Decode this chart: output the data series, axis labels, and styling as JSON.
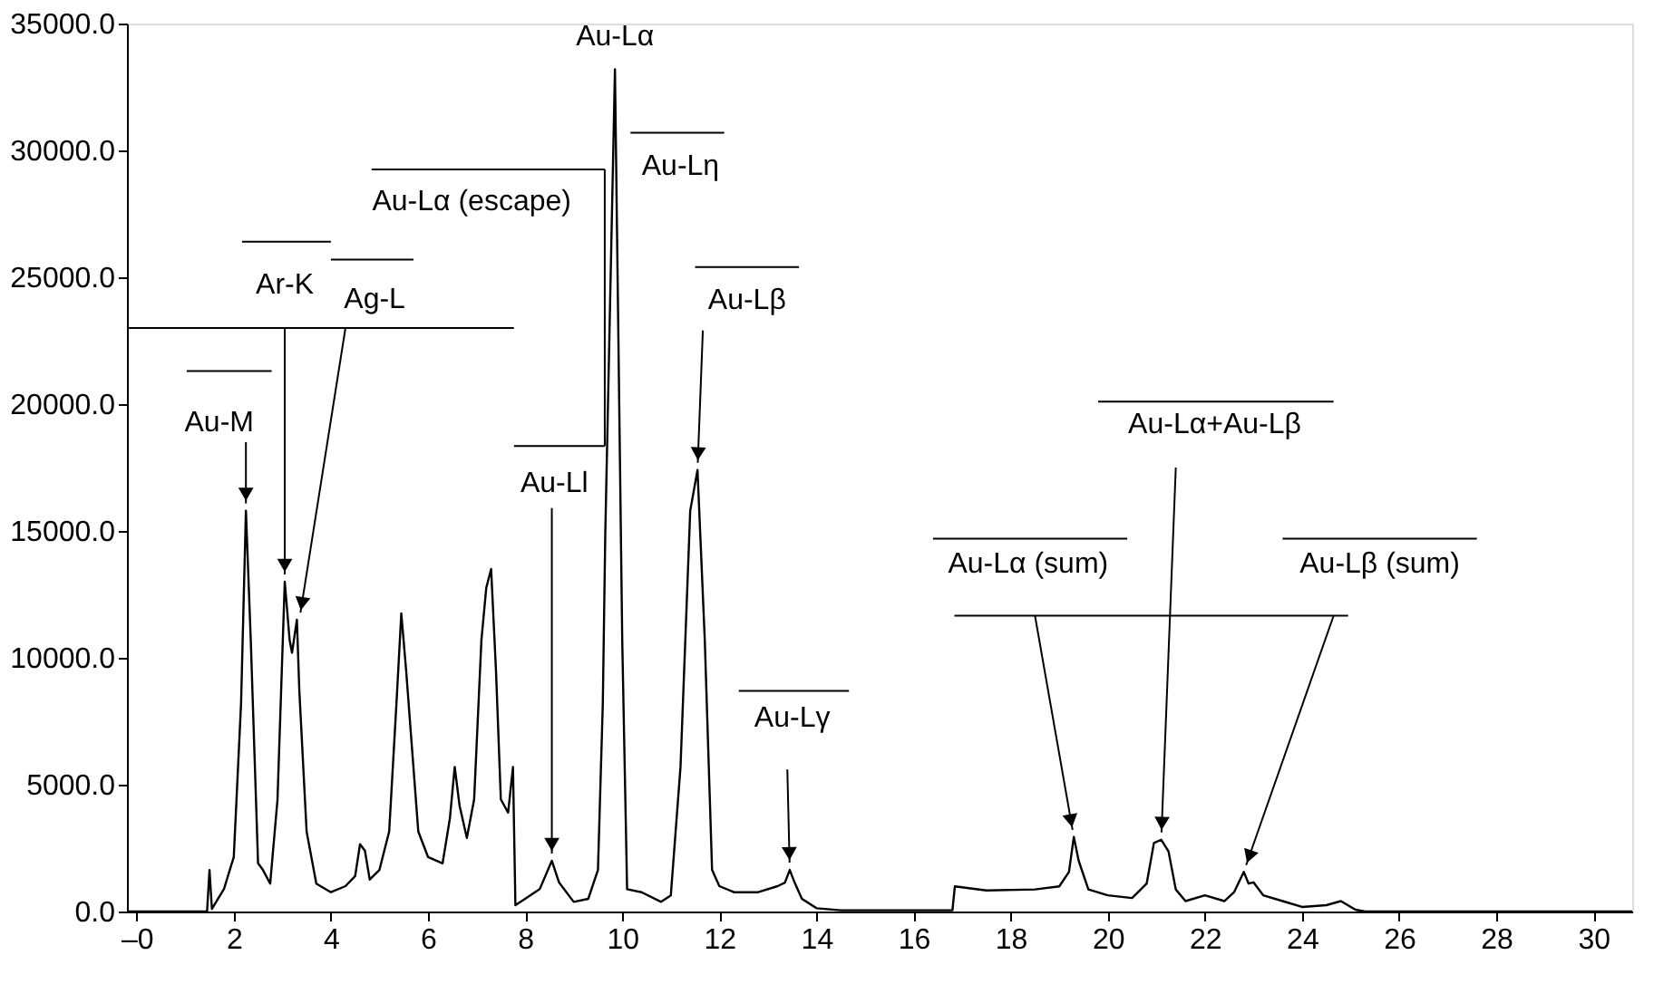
{
  "chart_data": {
    "type": "line",
    "x": [
      -0.2,
      1.45,
      1.5,
      1.55,
      1.8,
      2.0,
      2.15,
      2.25,
      2.35,
      2.5,
      2.6,
      2.75,
      2.9,
      3.05,
      3.15,
      3.2,
      3.3,
      3.35,
      3.5,
      3.7,
      4.0,
      4.3,
      4.5,
      4.6,
      4.7,
      4.8,
      5.0,
      5.2,
      5.35,
      5.45,
      5.55,
      5.65,
      5.8,
      6.0,
      6.3,
      6.45,
      6.55,
      6.65,
      6.8,
      6.95,
      7.1,
      7.2,
      7.3,
      7.4,
      7.5,
      7.65,
      7.75,
      7.8,
      8.0,
      8.3,
      8.55,
      8.7,
      9.0,
      9.3,
      9.5,
      9.6,
      9.65,
      9.85,
      10.0,
      10.1,
      10.4,
      10.8,
      11.0,
      11.2,
      11.4,
      11.55,
      11.7,
      11.85,
      12.0,
      12.3,
      12.8,
      13.2,
      13.35,
      13.45,
      13.55,
      13.7,
      13.8,
      14.0,
      14.5,
      16.8,
      16.85,
      17.5,
      18.5,
      19.0,
      19.2,
      19.3,
      19.4,
      19.6,
      20.0,
      20.5,
      20.8,
      20.95,
      21.1,
      21.25,
      21.4,
      21.6,
      22.0,
      22.4,
      22.6,
      22.8,
      22.9,
      23.0,
      23.2,
      23.6,
      24.0,
      24.5,
      24.8,
      25.1,
      25.3,
      30.8
    ],
    "series": [
      {
        "color": "#000000",
        "values": [
          0,
          0,
          1640,
          100,
          900,
          2150,
          8200,
          15800,
          10700,
          1900,
          1640,
          1100,
          4400,
          13000,
          10700,
          10200,
          11500,
          8700,
          3150,
          1100,
          760,
          1000,
          1400,
          2650,
          2400,
          1260,
          1640,
          3150,
          8200,
          11750,
          9500,
          6950,
          3150,
          2150,
          1900,
          3660,
          5700,
          4170,
          2900,
          4420,
          10700,
          12760,
          13500,
          9500,
          4420,
          3900,
          5700,
          250,
          500,
          880,
          2000,
          1140,
          380,
          500,
          1640,
          8200,
          14800,
          33200,
          10700,
          880,
          760,
          380,
          630,
          5700,
          15800,
          17400,
          10700,
          1640,
          1000,
          760,
          760,
          1000,
          1140,
          1640,
          1140,
          500,
          380,
          130,
          50,
          50,
          990,
          830,
          870,
          990,
          1560,
          2940,
          2000,
          870,
          640,
          530,
          1100,
          2700,
          2830,
          2370,
          870,
          410,
          640,
          410,
          760,
          1560,
          1100,
          1150,
          640,
          410,
          180,
          250,
          410,
          70,
          0,
          0
        ]
      }
    ],
    "xlim": [
      -0.2,
      30.8
    ],
    "ylim": [
      0,
      35000
    ],
    "xticks": [
      {
        "value": 0,
        "label": "–0"
      },
      2,
      4,
      6,
      8,
      10,
      12,
      14,
      16,
      18,
      20,
      22,
      24,
      26,
      28,
      30
    ],
    "yticks": [
      {
        "value": 0,
        "label": "0.0"
      },
      {
        "value": 5000,
        "label": "5000.0"
      },
      {
        "value": 10000,
        "label": "10000.0"
      },
      {
        "value": 15000,
        "label": "15000.0"
      },
      {
        "value": 20000,
        "label": "20000.0"
      },
      {
        "value": 25000,
        "label": "25000.0"
      },
      {
        "value": 30000,
        "label": "30000.0"
      },
      {
        "value": 35000,
        "label": "35000.0"
      }
    ],
    "grid": false,
    "marker": "none",
    "line_style": "solid",
    "annotations": [
      {
        "text": "Au-M",
        "x": 2.25,
        "y": 15800
      },
      {
        "text": "Ar-K",
        "x": 3.05,
        "y": 13000
      },
      {
        "text": "Ag-L",
        "x": 3.35,
        "y": 11500
      },
      {
        "text": "Au-Lα (escape)",
        "x": 9.64,
        "y": 18350
      },
      {
        "text": "Au-Lα",
        "x": 9.85,
        "y": 33200
      },
      "Au-Lη",
      {
        "text": "Au-Ll",
        "x": 8.55,
        "y": 2000
      },
      {
        "text": "Au-Lβ",
        "x": 11.55,
        "y": 17400
      },
      {
        "text": "Au-Lγ",
        "x": 13.45,
        "y": 1640
      },
      {
        "text": "Au-Lα (sum)",
        "x": 19.3,
        "y": 2940
      },
      {
        "text": "Au-Lα+Au-Lβ",
        "x": 21.1,
        "y": 2830
      },
      {
        "text": "Au-Lβ (sum)",
        "x": 22.8,
        "y": 1560
      }
    ]
  }
}
